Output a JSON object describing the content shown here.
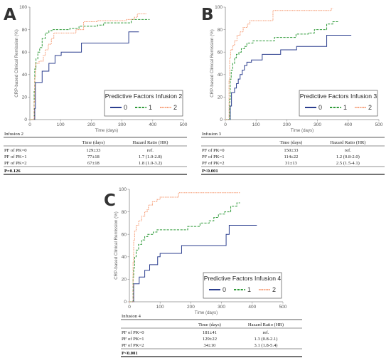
{
  "figure": {
    "panels": [
      {
        "letter": "A",
        "legend_title": "Predictive Factors Infusion 2",
        "table": {
          "title": "Infusion 2",
          "columns": [
            "",
            "Time (days)",
            "Hazard Ratio (HR)"
          ],
          "rows": [
            [
              "PF of PK=0",
              "129±33",
              "ref."
            ],
            [
              "PF of PK=1",
              "77±18",
              "1.7 (1.0-2.8)"
            ],
            [
              "PF of PK=2",
              "67±18",
              "1.8 (1.0-3.2)"
            ]
          ],
          "footer": "P=0.126"
        }
      },
      {
        "letter": "B",
        "legend_title": "Predictive Factors Infusion 3",
        "table": {
          "title": "Infusion 3",
          "columns": [
            "",
            "Time (days)",
            "Hazard Ratio (HR)"
          ],
          "rows": [
            [
              "PF of PK=0",
              "150±33",
              "ref."
            ],
            [
              "PF of PK=1",
              "114±22",
              "1.2 (0.8-2.0)"
            ],
            [
              "PF of PK=2",
              "31±13",
              "2.5 (1.5-4.1)"
            ]
          ],
          "footer": "P<0.001"
        }
      },
      {
        "letter": "C",
        "legend_title": "Predictive Factors Infusion 4",
        "table": {
          "title": "Infusion 4",
          "columns": [
            "",
            "Time (days)",
            "Hazard Ratio (HR)"
          ],
          "rows": [
            [
              "PF of PK=0",
              "181±41",
              "ref."
            ],
            [
              "PF of PK=1",
              "129±22",
              "1.3 (0.8-2.1)"
            ],
            [
              "PF of PK=2",
              "34±10",
              "3.1 (1.8-5.4)"
            ]
          ],
          "footer": "P<0.001"
        }
      }
    ]
  },
  "chart_data": [
    {
      "type": "line",
      "step": true,
      "title": "",
      "xlabel": "Time (days)",
      "ylabel": "CRP-based Clinical Remission (%)",
      "xlim": [
        0,
        500
      ],
      "ylim": [
        0,
        100
      ],
      "xticks": [
        0,
        100,
        200,
        300,
        400,
        500
      ],
      "yticks": [
        0,
        20,
        40,
        60,
        80,
        100
      ],
      "legend_title": "Predictive Factors Infusion 2",
      "series": [
        {
          "name": "0",
          "color": "#2c3f8f",
          "dash": "solid",
          "points": [
            [
              0,
              0
            ],
            [
              14,
              0
            ],
            [
              16,
              10
            ],
            [
              18,
              33
            ],
            [
              38,
              33
            ],
            [
              40,
              43
            ],
            [
              58,
              43
            ],
            [
              62,
              50
            ],
            [
              78,
              50
            ],
            [
              82,
              57
            ],
            [
              98,
              57
            ],
            [
              102,
              60
            ],
            [
              165,
              60
            ],
            [
              168,
              68
            ],
            [
              318,
              68
            ],
            [
              322,
              78
            ],
            [
              355,
              78
            ]
          ]
        },
        {
          "name": "1",
          "color": "#2e9a38",
          "dash": "dashed",
          "points": [
            [
              0,
              0
            ],
            [
              12,
              0
            ],
            [
              14,
              25
            ],
            [
              16,
              45
            ],
            [
              20,
              54
            ],
            [
              26,
              60
            ],
            [
              32,
              64
            ],
            [
              40,
              72
            ],
            [
              50,
              77
            ],
            [
              62,
              79
            ],
            [
              72,
              80
            ],
            [
              100,
              80
            ],
            [
              130,
              81
            ],
            [
              160,
              83
            ],
            [
              220,
              84
            ],
            [
              240,
              86
            ],
            [
              310,
              86
            ],
            [
              330,
              89
            ],
            [
              390,
              89
            ]
          ]
        },
        {
          "name": "2",
          "color": "#f5956b",
          "dash": "dotted",
          "points": [
            [
              0,
              0
            ],
            [
              12,
              0
            ],
            [
              14,
              16
            ],
            [
              16,
              38
            ],
            [
              18,
              50
            ],
            [
              30,
              52
            ],
            [
              44,
              57
            ],
            [
              50,
              62
            ],
            [
              60,
              67
            ],
            [
              70,
              72
            ],
            [
              78,
              77
            ],
            [
              120,
              77
            ],
            [
              150,
              80
            ],
            [
              175,
              87
            ],
            [
              220,
              88
            ],
            [
              315,
              89
            ],
            [
              340,
              91
            ],
            [
              350,
              94
            ],
            [
              380,
              94
            ]
          ]
        }
      ]
    },
    {
      "type": "line",
      "step": true,
      "title": "",
      "xlabel": "Time (days)",
      "ylabel": "CRP-based Clinical Remission (%)",
      "xlim": [
        0,
        500
      ],
      "ylim": [
        0,
        100
      ],
      "xticks": [
        0,
        100,
        200,
        300,
        400,
        500
      ],
      "yticks": [
        0,
        20,
        40,
        60,
        80,
        100
      ],
      "legend_title": "Predictive Factors Infusion 3",
      "series": [
        {
          "name": "0",
          "color": "#2c3f8f",
          "dash": "solid",
          "points": [
            [
              0,
              0
            ],
            [
              14,
              0
            ],
            [
              16,
              12
            ],
            [
              20,
              24
            ],
            [
              30,
              28
            ],
            [
              36,
              32
            ],
            [
              42,
              36
            ],
            [
              48,
              40
            ],
            [
              55,
              44
            ],
            [
              62,
              48
            ],
            [
              70,
              51
            ],
            [
              85,
              53
            ],
            [
              115,
              53
            ],
            [
              120,
              58
            ],
            [
              175,
              58
            ],
            [
              180,
              62
            ],
            [
              228,
              62
            ],
            [
              232,
              65
            ],
            [
              325,
              65
            ],
            [
              330,
              75
            ],
            [
              410,
              75
            ]
          ]
        },
        {
          "name": "1",
          "color": "#2e9a38",
          "dash": "dashed",
          "points": [
            [
              0,
              0
            ],
            [
              12,
              0
            ],
            [
              14,
              18
            ],
            [
              16,
              36
            ],
            [
              19,
              44
            ],
            [
              24,
              50
            ],
            [
              30,
              55
            ],
            [
              36,
              58
            ],
            [
              44,
              60
            ],
            [
              52,
              63
            ],
            [
              62,
              65
            ],
            [
              70,
              68
            ],
            [
              90,
              70
            ],
            [
              150,
              70
            ],
            [
              160,
              73
            ],
            [
              220,
              73
            ],
            [
              230,
              76
            ],
            [
              270,
              77
            ],
            [
              290,
              80
            ],
            [
              330,
              85
            ],
            [
              350,
              87
            ],
            [
              370,
              87
            ]
          ]
        },
        {
          "name": "2",
          "color": "#f5956b",
          "dash": "dotted",
          "points": [
            [
              0,
              0
            ],
            [
              10,
              0
            ],
            [
              12,
              35
            ],
            [
              14,
              55
            ],
            [
              17,
              62
            ],
            [
              24,
              66
            ],
            [
              30,
              70
            ],
            [
              38,
              75
            ],
            [
              48,
              78
            ],
            [
              58,
              82
            ],
            [
              72,
              85
            ],
            [
              80,
              88
            ],
            [
              140,
              88
            ],
            [
              155,
              97
            ],
            [
              340,
              97
            ],
            [
              345,
              99
            ],
            [
              350,
              99
            ]
          ]
        }
      ]
    },
    {
      "type": "line",
      "step": true,
      "title": "",
      "xlabel": "Time (days)",
      "ylabel": "CRP-based Clinical Remission (%)",
      "xlim": [
        0,
        500
      ],
      "ylim": [
        0,
        100
      ],
      "xticks": [
        0,
        100,
        200,
        300,
        400,
        500
      ],
      "yticks": [
        0,
        20,
        40,
        60,
        80,
        100
      ],
      "legend_title": "Predictive Factors Infusion 4",
      "series": [
        {
          "name": "0",
          "color": "#2c3f8f",
          "dash": "solid",
          "points": [
            [
              0,
              0
            ],
            [
              12,
              0
            ],
            [
              14,
              16
            ],
            [
              28,
              16
            ],
            [
              32,
              22
            ],
            [
              45,
              22
            ],
            [
              50,
              28
            ],
            [
              62,
              28
            ],
            [
              66,
              33
            ],
            [
              88,
              33
            ],
            [
              92,
              40
            ],
            [
              100,
              43
            ],
            [
              165,
              43
            ],
            [
              170,
              50
            ],
            [
              310,
              50
            ],
            [
              315,
              60
            ],
            [
              325,
              68
            ],
            [
              415,
              68
            ]
          ]
        },
        {
          "name": "1",
          "color": "#2e9a38",
          "dash": "dashed",
          "points": [
            [
              0,
              0
            ],
            [
              10,
              0
            ],
            [
              12,
              22
            ],
            [
              14,
              30
            ],
            [
              17,
              40
            ],
            [
              22,
              46
            ],
            [
              30,
              51
            ],
            [
              40,
              55
            ],
            [
              50,
              58
            ],
            [
              60,
              60
            ],
            [
              78,
              62
            ],
            [
              90,
              64
            ],
            [
              180,
              64
            ],
            [
              190,
              67
            ],
            [
              230,
              70
            ],
            [
              260,
              72
            ],
            [
              275,
              75
            ],
            [
              290,
              78
            ],
            [
              310,
              80
            ],
            [
              330,
              85
            ],
            [
              350,
              88
            ],
            [
              360,
              88
            ]
          ]
        },
        {
          "name": "2",
          "color": "#f5956b",
          "dash": "dotted",
          "points": [
            [
              0,
              0
            ],
            [
              10,
              0
            ],
            [
              12,
              35
            ],
            [
              14,
              55
            ],
            [
              17,
              63
            ],
            [
              22,
              68
            ],
            [
              30,
              72
            ],
            [
              40,
              76
            ],
            [
              50,
              80
            ],
            [
              58,
              82
            ],
            [
              62,
              86
            ],
            [
              75,
              89
            ],
            [
              90,
              91
            ],
            [
              100,
              93
            ],
            [
              150,
              93
            ],
            [
              160,
              97
            ],
            [
              320,
              97
            ],
            [
              360,
              97
            ]
          ]
        }
      ]
    }
  ]
}
